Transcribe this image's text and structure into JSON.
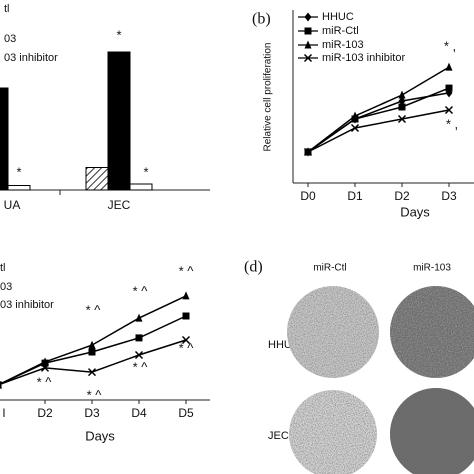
{
  "chart_data": [
    {
      "type": "bar",
      "categories": [
        "UA",
        "JEC"
      ],
      "ylim": [
        0,
        6
      ],
      "series": [
        {
          "name": "tl",
          "color": "#ffffff",
          "pattern": "hatch",
          "values": [
            null,
            0.75
          ]
        },
        {
          "name": "03",
          "color": "#000000",
          "values": [
            3.4,
            4.6
          ]
        },
        {
          "name": "03 inhibitor",
          "color": "#ffffff",
          "values": [
            0.15,
            0.2
          ]
        }
      ],
      "annotations": [
        "*",
        "*",
        "*"
      ]
    },
    {
      "type": "line",
      "label": "(b)",
      "categories": [
        "D0",
        "D1",
        "D2",
        "D3"
      ],
      "xlabel": "Days",
      "ylabel": "Relative cell proliferation",
      "ylim": [
        0,
        6
      ],
      "series": [
        {
          "name": "HHUC",
          "color": "#000000",
          "marker": "diamond",
          "values": [
            1,
            2.1,
            2.7,
            2.97
          ]
        },
        {
          "name": "miR-Ctl",
          "color": "#000000",
          "marker": "square",
          "values": [
            1,
            2.1,
            2.5,
            3.13
          ]
        },
        {
          "name": "miR-103",
          "color": "#000000",
          "marker": "triangle",
          "values": [
            1,
            2.2,
            2.9,
            3.83
          ]
        },
        {
          "name": "miR-103 inhibitor",
          "color": "#000000",
          "marker": "x",
          "values": [
            1,
            1.8,
            2.1,
            2.4
          ]
        }
      ],
      "annotations": [
        "* ,",
        "* ,"
      ]
    },
    {
      "type": "line",
      "categories": [
        "l",
        "D2",
        "D3",
        "D4",
        "D5"
      ],
      "xlabel": "Days",
      "ylim": [
        0,
        6
      ],
      "series": [
        {
          "name": "tl",
          "color": "#000000",
          "marker": "square",
          "values": [
            1,
            1.73,
            2.1,
            2.57,
            3.3
          ]
        },
        {
          "name": "03",
          "color": "#000000",
          "marker": "triangle",
          "values": [
            1,
            1.77,
            2.33,
            3.23,
            3.97
          ]
        },
        {
          "name": "03 inhibitor",
          "color": "#000000",
          "marker": "x",
          "values": [
            1,
            1.57,
            1.43,
            2.0,
            2.5
          ]
        }
      ],
      "annotations": [
        "* ^",
        "* ^",
        "* ^",
        "* ^",
        "* ^",
        "* ^",
        "* ^"
      ]
    }
  ],
  "panel_d": {
    "label": "(d)",
    "columns": [
      "miR-Ctl",
      "miR-103"
    ],
    "rows": [
      "HHUA",
      "JEC"
    ]
  }
}
